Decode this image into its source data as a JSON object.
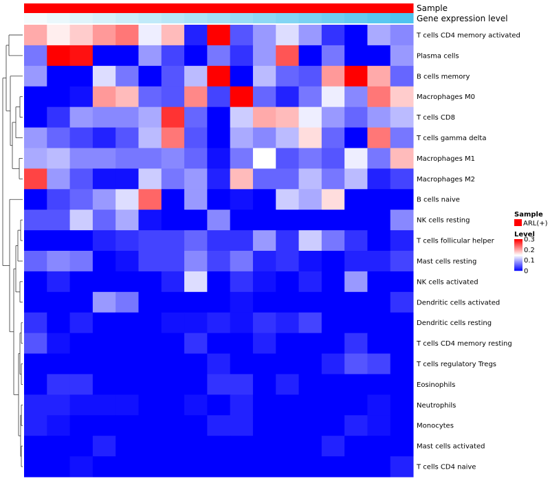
{
  "chart_data": {
    "type": "heatmap",
    "title": "",
    "annotations": [
      {
        "name": "Sample",
        "values": [
          "ARL(+)"
        ]
      },
      {
        "name": "Gene expression level",
        "values": [
          0.0,
          0.0625,
          0.125,
          0.1875,
          0.25,
          0.3125,
          0.375,
          0.4375,
          0.5,
          0.5625,
          0.625,
          0.6875,
          0.75,
          0.8125,
          0.875,
          0.9375,
          1.0
        ]
      }
    ],
    "rows": [
      "T cells CD4 memory activated",
      "Plasma cells",
      "B cells memory",
      "Macrophages M0",
      "T cells CD8",
      "T cells gamma delta",
      "Macrophages M1",
      "Macrophages M2",
      "B cells naive",
      "NK cells resting",
      "T cells follicular helper",
      "Mast cells resting",
      "NK cells activated",
      "Dendritic cells activated",
      "Dendritic cells resting",
      "T cells CD4 memory resting",
      "T cells regulatory  Tregs",
      "Eosinophils",
      "Neutrophils",
      "Monocytes",
      "Mast cells activated",
      "T cells CD4 naive"
    ],
    "n_columns": 17,
    "values": [
      [
        0.2,
        0.16,
        0.18,
        0.21,
        0.23,
        0.14,
        0.19,
        0.02,
        0.3,
        0.05,
        0.09,
        0.13,
        0.09,
        0.03,
        0.0,
        0.1,
        0.08
      ],
      [
        0.07,
        0.3,
        0.29,
        0.0,
        0.0,
        0.09,
        0.04,
        0.0,
        0.07,
        0.03,
        0.09,
        0.25,
        0.0,
        0.07,
        0.0,
        0.0,
        0.09
      ],
      [
        0.09,
        0.0,
        0.0,
        0.13,
        0.07,
        0.0,
        0.05,
        0.11,
        0.3,
        0.0,
        0.11,
        0.06,
        0.05,
        0.21,
        0.3,
        0.2,
        0.06
      ],
      [
        0.0,
        0.0,
        0.01,
        0.21,
        0.19,
        0.06,
        0.05,
        0.22,
        0.04,
        0.3,
        0.06,
        0.02,
        0.07,
        0.14,
        0.08,
        0.23,
        0.18
      ],
      [
        0.0,
        0.03,
        0.09,
        0.08,
        0.08,
        0.1,
        0.27,
        0.06,
        0.0,
        0.12,
        0.2,
        0.19,
        0.14,
        0.09,
        0.06,
        0.09,
        0.11
      ],
      [
        0.09,
        0.06,
        0.04,
        0.02,
        0.05,
        0.11,
        0.23,
        0.05,
        0.0,
        0.1,
        0.08,
        0.11,
        0.17,
        0.06,
        0.0,
        0.23,
        0.07
      ],
      [
        0.1,
        0.11,
        0.08,
        0.08,
        0.07,
        0.07,
        0.08,
        0.06,
        0.01,
        0.07,
        0.15,
        0.05,
        0.07,
        0.05,
        0.14,
        0.07,
        0.19
      ],
      [
        0.26,
        0.09,
        0.05,
        0.01,
        0.01,
        0.12,
        0.07,
        0.09,
        0.02,
        0.19,
        0.06,
        0.06,
        0.11,
        0.07,
        0.11,
        0.02,
        0.04
      ],
      [
        0.0,
        0.04,
        0.06,
        0.09,
        0.13,
        0.24,
        0.0,
        0.09,
        0.0,
        0.01,
        0.0,
        0.12,
        0.1,
        0.17,
        0.0,
        0.0,
        0.0
      ],
      [
        0.05,
        0.05,
        0.12,
        0.06,
        0.1,
        0.01,
        0.0,
        0.0,
        0.08,
        0.0,
        0.0,
        0.0,
        0.0,
        0.0,
        0.0,
        0.0,
        0.08
      ],
      [
        0.0,
        0.0,
        0.0,
        0.02,
        0.03,
        0.04,
        0.04,
        0.06,
        0.03,
        0.03,
        0.09,
        0.03,
        0.12,
        0.07,
        0.03,
        0.0,
        0.02
      ],
      [
        0.06,
        0.08,
        0.07,
        0.0,
        0.01,
        0.04,
        0.04,
        0.08,
        0.04,
        0.07,
        0.02,
        0.03,
        0.01,
        0.0,
        0.02,
        0.02,
        0.04
      ],
      [
        0.0,
        0.02,
        0.0,
        0.0,
        0.0,
        0.0,
        0.02,
        0.13,
        0.0,
        0.03,
        0.01,
        0.0,
        0.02,
        0.0,
        0.09,
        0.0,
        0.0
      ],
      [
        0.0,
        0.0,
        0.0,
        0.09,
        0.07,
        0.0,
        0.0,
        0.0,
        0.0,
        0.01,
        0.0,
        0.0,
        0.0,
        0.0,
        0.0,
        0.0,
        0.03
      ],
      [
        0.03,
        0.0,
        0.02,
        0.0,
        0.0,
        0.0,
        0.01,
        0.01,
        0.02,
        0.01,
        0.03,
        0.02,
        0.04,
        0.0,
        0.0,
        0.0,
        0.0
      ],
      [
        0.05,
        0.01,
        0.0,
        0.0,
        0.0,
        0.0,
        0.0,
        0.03,
        0.0,
        0.0,
        0.02,
        0.0,
        0.0,
        0.0,
        0.03,
        0.0,
        0.0
      ],
      [
        0.0,
        0.0,
        0.0,
        0.0,
        0.0,
        0.0,
        0.0,
        0.0,
        0.02,
        0.0,
        0.0,
        0.0,
        0.0,
        0.02,
        0.05,
        0.04,
        0.0
      ],
      [
        0.0,
        0.03,
        0.03,
        0.0,
        0.0,
        0.0,
        0.0,
        0.0,
        0.03,
        0.03,
        0.0,
        0.02,
        0.0,
        0.0,
        0.0,
        0.0,
        0.0
      ],
      [
        0.02,
        0.02,
        0.01,
        0.01,
        0.01,
        0.0,
        0.0,
        0.01,
        0.0,
        0.02,
        0.0,
        0.0,
        0.0,
        0.0,
        0.0,
        0.01,
        0.0
      ],
      [
        0.02,
        0.01,
        0.0,
        0.0,
        0.0,
        0.0,
        0.0,
        0.0,
        0.02,
        0.02,
        0.0,
        0.0,
        0.0,
        0.0,
        0.02,
        0.01,
        0.0
      ],
      [
        0.0,
        0.0,
        0.0,
        0.02,
        0.0,
        0.0,
        0.0,
        0.0,
        0.0,
        0.0,
        0.0,
        0.0,
        0.0,
        0.02,
        0.0,
        0.0,
        0.0
      ],
      [
        0.0,
        0.0,
        0.01,
        0.0,
        0.0,
        0.0,
        0.0,
        0.0,
        0.0,
        0.0,
        0.0,
        0.0,
        0.0,
        0.0,
        0.0,
        0.0,
        0.02
      ]
    ],
    "color_scale": {
      "min": 0,
      "mid": 0.15,
      "max": 0.3,
      "colors": [
        "#0000ff",
        "#ffffff",
        "#ff0000"
      ]
    },
    "legend": {
      "sample_title": "Sample",
      "sample_entry": "ARL(+)",
      "sample_color": "#ff0000",
      "level_title": "Level",
      "level_ticks": [
        "0.3",
        "0.2",
        "0.1",
        "0"
      ],
      "placement": "right"
    },
    "annotation_colors": {
      "start": "#f5fbfd",
      "end": "#4fc3f0"
    }
  }
}
